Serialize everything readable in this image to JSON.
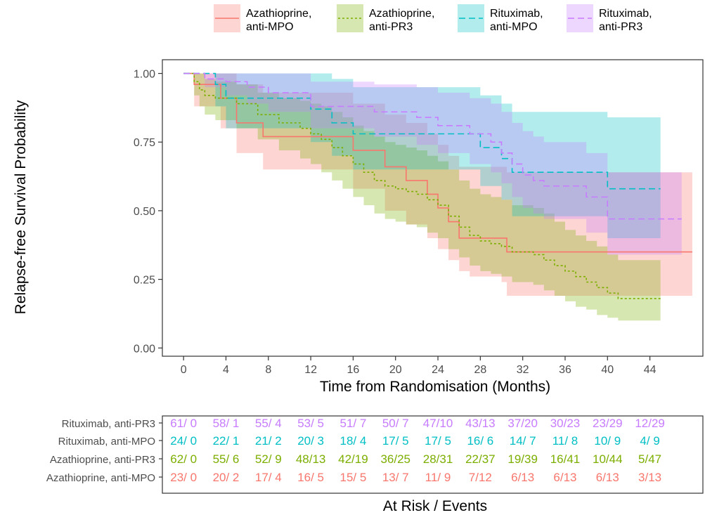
{
  "chart_data": [
    {
      "type": "line",
      "subtype": "kaplan-meier step curves with confidence bands",
      "xlabel": "Time from Randomisation (Months)",
      "ylabel": "Relapse-free Survival Probability",
      "xlim": [
        -2,
        49
      ],
      "ylim": [
        -0.03,
        1.05
      ],
      "xticks": [
        0,
        4,
        8,
        12,
        16,
        20,
        24,
        28,
        32,
        36,
        40,
        44
      ],
      "yticks": [
        "0.00",
        "0.25",
        "0.50",
        "0.75",
        "1.00"
      ],
      "grid": false,
      "legend_position": "top",
      "series": [
        {
          "name": "Azathioprine, anti-MPO",
          "color": "#F8766D",
          "line_style": "solid",
          "x": [
            0,
            1,
            3.5,
            5,
            7.5,
            15,
            16,
            19,
            21,
            23,
            24,
            25,
            26,
            27,
            30,
            30.5,
            48
          ],
          "y": [
            1.0,
            0.96,
            0.91,
            0.82,
            0.77,
            0.77,
            0.72,
            0.66,
            0.61,
            0.56,
            0.51,
            0.46,
            0.4,
            0.4,
            0.4,
            0.35,
            0.35
          ],
          "ci_lower": [
            1.0,
            0.88,
            0.8,
            0.71,
            0.65,
            0.65,
            0.58,
            0.5,
            0.45,
            0.4,
            0.36,
            0.32,
            0.28,
            0.26,
            0.24,
            0.19,
            0.19
          ],
          "ci_upper": [
            1.0,
            1.0,
            1.0,
            0.96,
            0.93,
            0.93,
            0.89,
            0.85,
            0.82,
            0.78,
            0.74,
            0.7,
            0.66,
            0.66,
            0.66,
            0.64,
            0.64
          ]
        },
        {
          "name": "Azathioprine, anti-PR3",
          "color": "#7CAE00",
          "line_style": "dotted",
          "x": [
            0,
            1,
            1.5,
            2,
            3,
            5,
            7,
            9,
            11,
            12,
            13,
            14,
            15,
            16,
            17,
            18,
            19,
            20,
            21,
            22,
            23,
            24,
            25,
            26,
            27,
            28,
            29,
            30,
            31,
            33,
            34,
            35,
            36,
            37,
            38,
            39,
            40,
            41,
            45
          ],
          "y": [
            1.0,
            0.97,
            0.94,
            0.92,
            0.91,
            0.89,
            0.85,
            0.82,
            0.8,
            0.78,
            0.76,
            0.73,
            0.7,
            0.67,
            0.64,
            0.61,
            0.59,
            0.58,
            0.57,
            0.56,
            0.54,
            0.52,
            0.48,
            0.44,
            0.41,
            0.39,
            0.38,
            0.37,
            0.35,
            0.34,
            0.32,
            0.3,
            0.28,
            0.26,
            0.24,
            0.22,
            0.2,
            0.18,
            0.18
          ],
          "ci_lower": [
            1.0,
            0.92,
            0.88,
            0.85,
            0.83,
            0.8,
            0.76,
            0.72,
            0.69,
            0.67,
            0.64,
            0.61,
            0.58,
            0.55,
            0.52,
            0.49,
            0.47,
            0.46,
            0.45,
            0.44,
            0.42,
            0.4,
            0.36,
            0.33,
            0.3,
            0.28,
            0.27,
            0.26,
            0.24,
            0.23,
            0.21,
            0.19,
            0.17,
            0.15,
            0.14,
            0.12,
            0.11,
            0.1,
            0.1
          ],
          "ci_upper": [
            1.0,
            1.0,
            1.0,
            0.98,
            0.97,
            0.96,
            0.93,
            0.91,
            0.9,
            0.89,
            0.88,
            0.86,
            0.84,
            0.81,
            0.79,
            0.77,
            0.75,
            0.74,
            0.73,
            0.72,
            0.7,
            0.68,
            0.65,
            0.61,
            0.58,
            0.56,
            0.55,
            0.54,
            0.52,
            0.51,
            0.49,
            0.46,
            0.43,
            0.41,
            0.39,
            0.37,
            0.34,
            0.32,
            0.32
          ]
        },
        {
          "name": "Rituximab, anti-MPO",
          "color": "#00BFC4",
          "line_style": "dashed",
          "x": [
            0,
            3,
            4,
            12,
            14,
            16,
            28,
            30,
            31,
            32,
            40,
            45
          ],
          "y": [
            1.0,
            0.96,
            0.91,
            0.87,
            0.82,
            0.78,
            0.73,
            0.69,
            0.64,
            0.64,
            0.58,
            0.58
          ],
          "ci_lower": [
            1.0,
            0.88,
            0.8,
            0.75,
            0.7,
            0.65,
            0.59,
            0.54,
            0.48,
            0.48,
            0.4,
            0.4
          ],
          "ci_upper": [
            1.0,
            1.0,
            1.0,
            1.0,
            0.98,
            0.95,
            0.92,
            0.89,
            0.86,
            0.86,
            0.84,
            0.84
          ]
        },
        {
          "name": "Rituximab, anti-PR3",
          "color": "#C77CFF",
          "line_style": "dashed",
          "x": [
            0,
            2,
            4,
            6,
            8,
            12,
            18,
            22,
            24,
            27,
            29,
            30,
            31,
            32,
            33,
            34,
            38,
            40,
            44,
            47
          ],
          "y": [
            1.0,
            0.98,
            0.97,
            0.95,
            0.93,
            0.88,
            0.86,
            0.84,
            0.81,
            0.78,
            0.75,
            0.71,
            0.67,
            0.63,
            0.61,
            0.59,
            0.55,
            0.47,
            0.47,
            0.47
          ],
          "ci_lower": [
            1.0,
            0.95,
            0.92,
            0.89,
            0.86,
            0.8,
            0.77,
            0.74,
            0.71,
            0.67,
            0.64,
            0.6,
            0.55,
            0.51,
            0.49,
            0.47,
            0.42,
            0.34,
            0.34,
            0.34
          ],
          "ci_upper": [
            1.0,
            1.0,
            1.0,
            1.0,
            1.0,
            0.97,
            0.96,
            0.95,
            0.93,
            0.91,
            0.89,
            0.86,
            0.82,
            0.79,
            0.77,
            0.75,
            0.71,
            0.64,
            0.64,
            0.64
          ]
        }
      ]
    },
    {
      "type": "table",
      "title": "At Risk / Events",
      "time_points": [
        0,
        4,
        8,
        12,
        16,
        20,
        24,
        28,
        32,
        36,
        40,
        44
      ],
      "rows": [
        {
          "name": "Rituximab, anti-PR3",
          "color": "#C77CFF",
          "values": [
            "61/ 0",
            "58/ 1",
            "55/ 4",
            "53/ 5",
            "51/ 7",
            "50/ 7",
            "47/10",
            "43/13",
            "37/20",
            "30/23",
            "23/29",
            "12/29"
          ]
        },
        {
          "name": "Rituximab, anti-MPO",
          "color": "#00BFC4",
          "values": [
            "24/ 0",
            "22/ 1",
            "21/ 2",
            "20/ 3",
            "18/ 4",
            "17/ 5",
            "17/ 5",
            "16/ 6",
            "14/ 7",
            "11/ 8",
            "10/ 9",
            "4/ 9"
          ]
        },
        {
          "name": "Azathioprine, anti-PR3",
          "color": "#7CAE00",
          "values": [
            "62/ 0",
            "55/ 6",
            "52/ 9",
            "48/13",
            "42/19",
            "36/25",
            "28/31",
            "22/37",
            "19/39",
            "16/41",
            "10/44",
            "5/47"
          ]
        },
        {
          "name": "Azathioprine, anti-MPO",
          "color": "#F8766D",
          "values": [
            "23/ 0",
            "20/ 2",
            "17/ 4",
            "16/ 5",
            "15/ 5",
            "13/ 7",
            "11/ 9",
            "7/12",
            "6/13",
            "6/13",
            "6/13",
            "3/13"
          ]
        }
      ]
    }
  ]
}
